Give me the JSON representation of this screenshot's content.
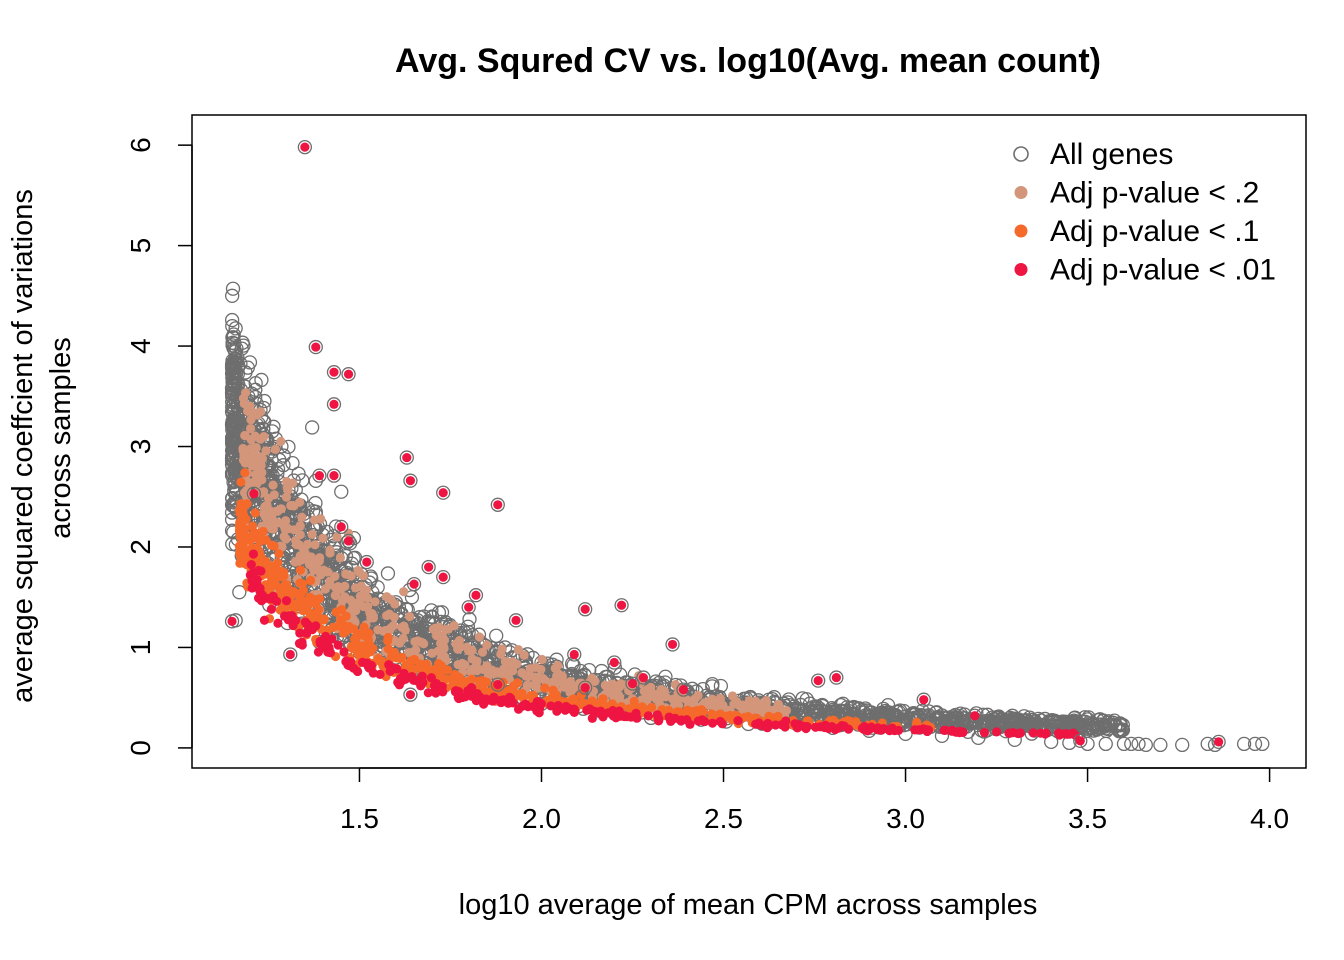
{
  "chart_data": {
    "type": "scatter",
    "title": "Avg. Squred CV vs. log10(Avg. mean count)",
    "xlabel": "log10 average of mean CPM across samples",
    "ylabel_line1": "average squared coeffcient of variations",
    "ylabel_line2": "across samples",
    "xlim": [
      1.04,
      4.1
    ],
    "ylim": [
      -0.2,
      6.3
    ],
    "x_ticks": [
      1.5,
      2.0,
      2.5,
      3.0,
      3.5,
      4.0
    ],
    "x_tick_labels": [
      "1.5",
      "2.0",
      "2.5",
      "3.0",
      "3.5",
      "4.0"
    ],
    "y_ticks": [
      0,
      1,
      2,
      3,
      4,
      5,
      6
    ],
    "y_tick_labels": [
      "0",
      "1",
      "2",
      "3",
      "4",
      "5",
      "6"
    ],
    "grid": false,
    "legend_position": "top-right",
    "colors": {
      "all": "#6e6e6e",
      "p2": "#d4967a",
      "p1": "#f5692a",
      "p01": "#ee1543"
    },
    "legend": [
      {
        "key": "all",
        "label": "All genes",
        "marker": "open-circle"
      },
      {
        "key": "p2",
        "label": "Adj p-value < .2",
        "marker": "filled-dot"
      },
      {
        "key": "p1",
        "label": "Adj p-value < .1",
        "marker": "filled-dot"
      },
      {
        "key": "p01",
        "label": "Adj p-value < .01",
        "marker": "filled-dot"
      }
    ],
    "trend": {
      "description": "dense band of genes following cv2 ≈ a/x trend",
      "x_range": [
        1.15,
        3.98
      ]
    },
    "series": [
      {
        "key": "all",
        "label": "All genes",
        "points": [
          [
            1.16,
            1.27
          ],
          [
            1.17,
            1.55
          ],
          [
            1.18,
            2.14
          ],
          [
            1.19,
            2.48
          ],
          [
            1.2,
            2.62
          ],
          [
            1.22,
            2.4
          ],
          [
            1.24,
            2.3
          ],
          [
            1.26,
            2.2
          ],
          [
            1.3,
            2.38
          ],
          [
            1.33,
            2.42
          ],
          [
            1.37,
            3.19
          ],
          [
            1.38,
            2.35
          ],
          [
            1.45,
            2.55
          ],
          [
            1.35,
            1.9
          ],
          [
            1.4,
            1.85
          ],
          [
            1.5,
            1.7
          ],
          [
            1.55,
            1.6
          ],
          [
            1.6,
            1.45
          ],
          [
            1.7,
            1.3
          ],
          [
            1.8,
            1.15
          ],
          [
            1.9,
            1.0
          ],
          [
            2.0,
            0.85
          ],
          [
            2.1,
            0.7
          ],
          [
            2.2,
            0.6
          ],
          [
            2.3,
            0.5
          ],
          [
            2.4,
            0.42
          ],
          [
            2.5,
            0.35
          ],
          [
            2.6,
            0.28
          ],
          [
            2.7,
            0.24
          ],
          [
            2.8,
            0.2
          ],
          [
            2.9,
            0.17
          ],
          [
            3.0,
            0.14
          ],
          [
            3.1,
            0.12
          ],
          [
            3.2,
            0.1
          ],
          [
            3.3,
            0.08
          ],
          [
            3.4,
            0.06
          ],
          [
            3.45,
            0.05
          ],
          [
            3.5,
            0.04
          ],
          [
            3.55,
            0.04
          ],
          [
            3.6,
            0.04
          ],
          [
            3.62,
            0.04
          ],
          [
            3.64,
            0.04
          ],
          [
            3.66,
            0.03
          ],
          [
            3.7,
            0.03
          ],
          [
            3.76,
            0.03
          ],
          [
            3.83,
            0.04
          ],
          [
            3.85,
            0.03
          ],
          [
            3.93,
            0.04
          ],
          [
            3.96,
            0.04
          ],
          [
            3.98,
            0.04
          ]
        ]
      },
      {
        "key": "p01",
        "label": "Adj p-value < .01",
        "points": [
          [
            1.35,
            5.98
          ],
          [
            1.38,
            3.99
          ],
          [
            1.43,
            3.74
          ],
          [
            1.47,
            3.72
          ],
          [
            1.43,
            3.42
          ],
          [
            1.63,
            2.89
          ],
          [
            1.64,
            2.66
          ],
          [
            1.73,
            2.54
          ],
          [
            1.88,
            2.42
          ],
          [
            1.39,
            2.71
          ],
          [
            1.43,
            2.71
          ],
          [
            1.45,
            2.2
          ],
          [
            1.47,
            2.06
          ],
          [
            1.52,
            1.85
          ],
          [
            1.69,
            1.8
          ],
          [
            1.73,
            1.7
          ],
          [
            1.65,
            1.63
          ],
          [
            1.82,
            1.52
          ],
          [
            1.8,
            1.4
          ],
          [
            1.93,
            1.27
          ],
          [
            2.12,
            1.38
          ],
          [
            2.22,
            1.42
          ],
          [
            2.36,
            1.03
          ],
          [
            2.09,
            0.93
          ],
          [
            2.2,
            0.85
          ],
          [
            2.28,
            0.7
          ],
          [
            2.25,
            0.64
          ],
          [
            2.39,
            0.58
          ],
          [
            2.76,
            0.67
          ],
          [
            2.81,
            0.7
          ],
          [
            3.05,
            0.48
          ],
          [
            3.19,
            0.32
          ],
          [
            1.31,
            0.93
          ],
          [
            1.15,
            1.26
          ],
          [
            1.21,
            2.53
          ],
          [
            1.64,
            0.53
          ],
          [
            1.88,
            0.63
          ],
          [
            2.12,
            0.6
          ],
          [
            3.86,
            0.06
          ],
          [
            3.48,
            0.07
          ]
        ]
      }
    ]
  }
}
